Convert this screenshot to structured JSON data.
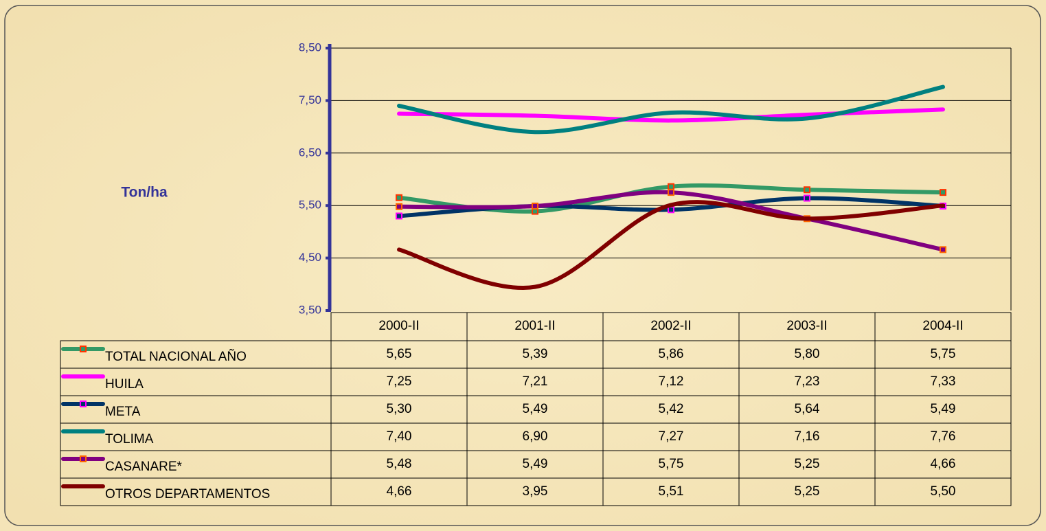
{
  "chart_data": {
    "type": "line",
    "y_label": "Ton/ha",
    "categories": [
      "2000-II",
      "2001-II",
      "2002-II",
      "2003-II",
      "2004-II"
    ],
    "ylim": [
      3.5,
      8.5
    ],
    "yticks": [
      {
        "value": 3.5,
        "label": "3,50"
      },
      {
        "value": 4.5,
        "label": "4,50"
      },
      {
        "value": 5.5,
        "label": "5,50"
      },
      {
        "value": 6.5,
        "label": "6,50"
      },
      {
        "value": 7.5,
        "label": "7,50"
      },
      {
        "value": 8.5,
        "label": "8,50"
      }
    ],
    "grid": true,
    "smooth": true,
    "series": [
      {
        "name": "TOTAL NACIONAL AÑO",
        "color": "#339966",
        "marker": "#ff3300",
        "values": [
          5.65,
          5.39,
          5.86,
          5.8,
          5.75
        ],
        "value_labels": [
          "5,65",
          "5,39",
          "5,86",
          "5,80",
          "5,75"
        ]
      },
      {
        "name": "HUILA",
        "color": "#ff00ff",
        "values": [
          7.25,
          7.21,
          7.12,
          7.23,
          7.33
        ],
        "value_labels": [
          "7,25",
          "7,21",
          "7,12",
          "7,23",
          "7,33"
        ]
      },
      {
        "name": "META",
        "color": "#003366",
        "marker": "#ff00ff",
        "values": [
          5.3,
          5.49,
          5.42,
          5.64,
          5.49
        ],
        "value_labels": [
          "5,30",
          "5,49",
          "5,42",
          "5,64",
          "5,49"
        ]
      },
      {
        "name": "TOLIMA",
        "color": "#008080",
        "values": [
          7.4,
          6.9,
          7.27,
          7.16,
          7.76
        ],
        "value_labels": [
          "7,40",
          "6,90",
          "7,27",
          "7,16",
          "7,76"
        ]
      },
      {
        "name": "CASANARE*",
        "color": "#800080",
        "marker": "#ff6600",
        "values": [
          5.48,
          5.49,
          5.75,
          5.25,
          4.66
        ],
        "value_labels": [
          "5,48",
          "5,49",
          "5,75",
          "5,25",
          "4,66"
        ]
      },
      {
        "name": "OTROS DEPARTAMENTOS",
        "color": "#800000",
        "values": [
          4.66,
          3.95,
          5.51,
          5.25,
          5.5
        ],
        "value_labels": [
          "4,66",
          "3,95",
          "5,51",
          "5,25",
          "5,50"
        ]
      }
    ]
  }
}
